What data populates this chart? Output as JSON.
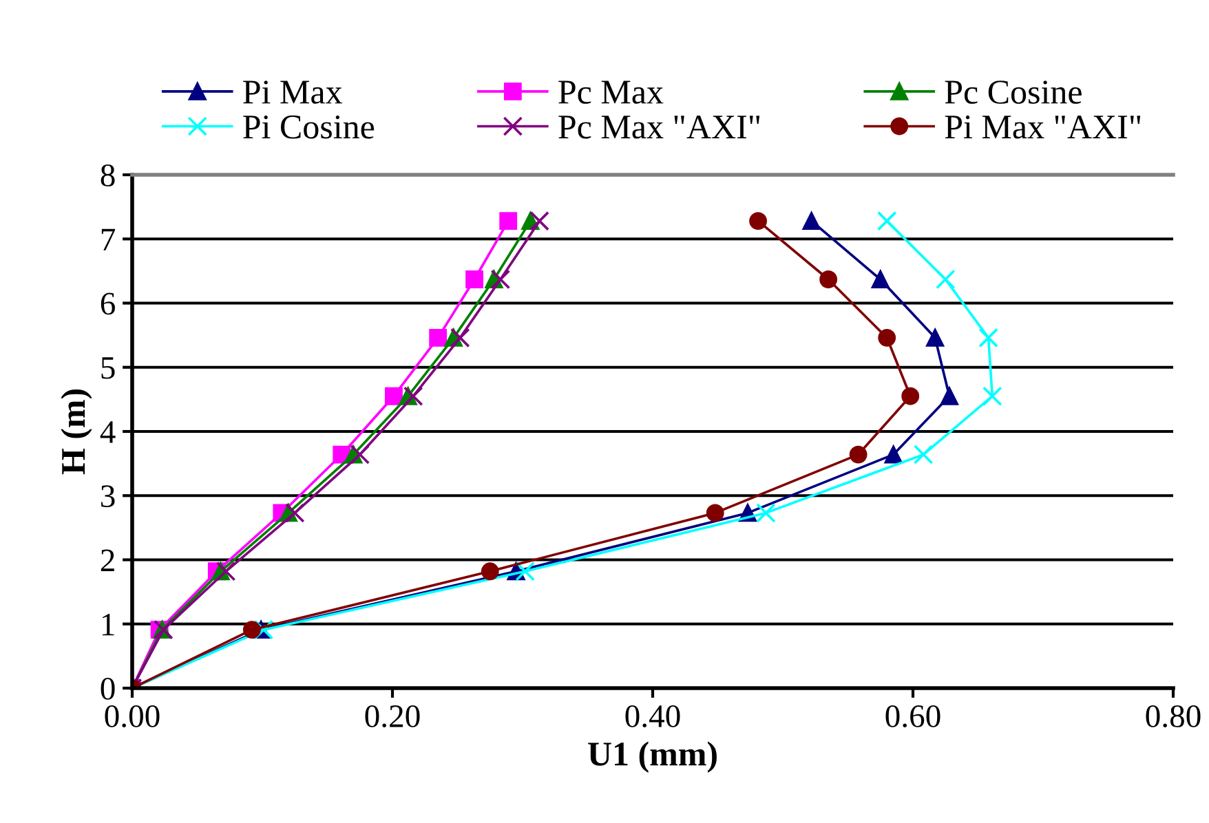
{
  "chart_data": {
    "type": "line",
    "xlabel": "U1 (mm)",
    "ylabel": "H (m)",
    "xlim": [
      0,
      0.8
    ],
    "ylim": [
      0,
      8
    ],
    "xticks": [
      {
        "value": 0,
        "label": "0.00"
      },
      {
        "value": 0.2,
        "label": "0.20"
      },
      {
        "value": 0.4,
        "label": "0.40"
      },
      {
        "value": 0.6,
        "label": "0.60"
      },
      {
        "value": 0.8,
        "label": "0.80"
      }
    ],
    "yticks": [
      0,
      1,
      2,
      3,
      4,
      5,
      6,
      7,
      8
    ],
    "grid": "y",
    "legend": "top",
    "line_style": "solid",
    "series": [
      {
        "name": "Pi Max",
        "color": "#000080",
        "marker": "triangle",
        "x": [
          0,
          0.099,
          0.295,
          0.473,
          0.585,
          0.628,
          0.617,
          0.575,
          0.522
        ],
        "values": [
          0,
          0.91,
          1.82,
          2.73,
          3.64,
          4.55,
          5.46,
          6.37,
          7.28
        ]
      },
      {
        "name": "Pc Max",
        "color": "#ff00ff",
        "marker": "square",
        "x": [
          0,
          0.021,
          0.065,
          0.115,
          0.161,
          0.201,
          0.235,
          0.263,
          0.289
        ],
        "values": [
          0,
          0.91,
          1.82,
          2.73,
          3.64,
          4.55,
          5.46,
          6.37,
          7.28
        ]
      },
      {
        "name": "Pc Cosine",
        "color": "#008000",
        "marker": "triangle",
        "x": [
          0,
          0.023,
          0.068,
          0.12,
          0.17,
          0.212,
          0.247,
          0.278,
          0.306
        ],
        "values": [
          0,
          0.91,
          1.82,
          2.73,
          3.64,
          4.55,
          5.46,
          6.37,
          7.28
        ]
      },
      {
        "name": "Pi Cosine",
        "color": "#00ffff",
        "marker": "cross",
        "x": [
          0,
          0.101,
          0.302,
          0.487,
          0.608,
          0.661,
          0.658,
          0.625,
          0.58
        ],
        "values": [
          0,
          0.91,
          1.82,
          2.73,
          3.64,
          4.55,
          5.46,
          6.37,
          7.28
        ]
      },
      {
        "name": "Pc Max \"AXI\"",
        "color": "#800080",
        "marker": "cross",
        "x": [
          0,
          0.024,
          0.072,
          0.125,
          0.175,
          0.216,
          0.252,
          0.283,
          0.313
        ],
        "values": [
          0,
          0.91,
          1.82,
          2.73,
          3.64,
          4.55,
          5.46,
          6.37,
          7.28
        ]
      },
      {
        "name": "Pi Max \"AXI\"",
        "color": "#800000",
        "marker": "circle",
        "x": [
          0,
          0.092,
          0.275,
          0.448,
          0.558,
          0.598,
          0.58,
          0.535,
          0.481
        ],
        "values": [
          0,
          0.91,
          1.82,
          2.73,
          3.64,
          4.55,
          5.46,
          6.37,
          7.28
        ]
      }
    ]
  }
}
